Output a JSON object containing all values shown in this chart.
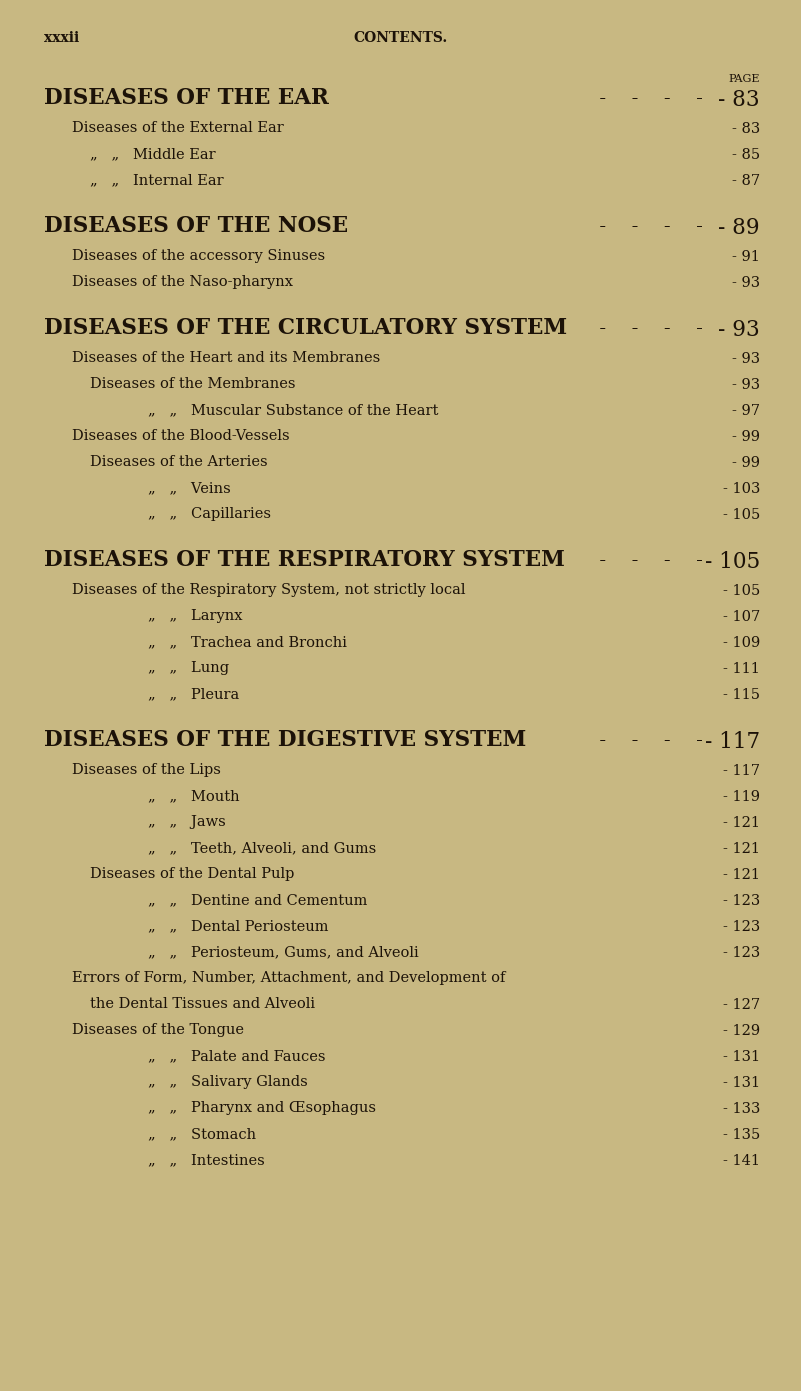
{
  "bg_color": "#c8b882",
  "text_color": "#1c1208",
  "header_left": "xxxii",
  "header_center": "CONTENTS.",
  "page_label": "PAGE",
  "lines": [
    {
      "text": "DISEASES OF THE EAR",
      "page": "83",
      "indent": 0,
      "type": "major",
      "dots": " -    -    -    -   "
    },
    {
      "text": "Diseases of the External Ear",
      "page": "83",
      "indent": 1,
      "type": "minor1",
      "dots": " -         -         -   "
    },
    {
      "text": "„   „   Middle Ear",
      "page": "85",
      "indent": 2,
      "type": "minor2",
      "dots": " -    -    -    -   "
    },
    {
      "text": "„   „   Internal Ear",
      "page": "87",
      "indent": 2,
      "type": "minor2",
      "dots": " -    -    -    -   "
    },
    {
      "text": "DISEASES OF THE NOSE",
      "page": "89",
      "indent": 0,
      "type": "major",
      "dots": " -    -    -    -   ",
      "space_before": true
    },
    {
      "text": "Diseases of the accessory Sinuses",
      "page": "91",
      "indent": 1,
      "type": "minor1",
      "dots": " -         -         -   "
    },
    {
      "text": "Diseases of the Naso-pharynx",
      "page": "93",
      "indent": 1,
      "type": "minor1",
      "dots": " -    -    -    -   "
    },
    {
      "text": "DISEASES OF THE CIRCULATORY SYSTEM",
      "page": "93",
      "indent": 0,
      "type": "major",
      "dots": " -   ",
      "space_before": true
    },
    {
      "text": "Diseases of the Heart and its Membranes",
      "page": "93",
      "indent": 1,
      "type": "minor1",
      "dots": " -   "
    },
    {
      "text": "Diseases of the Membranes",
      "page": "93",
      "indent": 2,
      "type": "minor1",
      "dots": " -    -    -    -    -   "
    },
    {
      "text": "„   „   Muscular Substance of the Heart",
      "page": "97",
      "indent": 3,
      "type": "minor2",
      "dots": " -   "
    },
    {
      "text": "Diseases of the Blood-Vessels",
      "page": "99",
      "indent": 1,
      "type": "minor1",
      "dots": " -    -    -    -   "
    },
    {
      "text": "Diseases of the Arteries",
      "page": "99",
      "indent": 2,
      "type": "minor1",
      "dots": " -    -    -    -   "
    },
    {
      "text": "„   „   Veins",
      "page": "103",
      "indent": 3,
      "type": "minor2",
      "dots": " -    -    -    -   "
    },
    {
      "text": "„   „   Capillaries",
      "page": "105",
      "indent": 3,
      "type": "minor2",
      "dots": " -    -    -    -   "
    },
    {
      "text": "DISEASES OF THE RESPIRATORY SYSTEM",
      "page": "105",
      "indent": 0,
      "type": "major",
      "dots": " -   ",
      "space_before": true
    },
    {
      "text": "Diseases of the Respiratory System, not strictly local",
      "page": "105",
      "indent": 1,
      "type": "minor1",
      "dots": " -   "
    },
    {
      "text": "„   „   Larynx",
      "page": "107",
      "indent": 3,
      "type": "minor2",
      "dots": " -    -    -    -    -    -   "
    },
    {
      "text": "„   „   Trachea and Bronchi",
      "page": "109",
      "indent": 3,
      "type": "minor2",
      "dots": " -    -    -   "
    },
    {
      "text": "„   „   Lung",
      "page": "111",
      "indent": 3,
      "type": "minor2",
      "dots": " -    -    -    -    -    -   "
    },
    {
      "text": "„   „   Pleura",
      "page": "115",
      "indent": 3,
      "type": "minor2",
      "dots": " -    -    -    -   "
    },
    {
      "text": "DISEASES OF THE DIGESTIVE SYSTEM",
      "page": "117",
      "indent": 0,
      "type": "major",
      "dots": " -   ",
      "space_before": true
    },
    {
      "text": "Diseases of the Lips",
      "page": "117",
      "indent": 1,
      "type": "minor1",
      "dots": " -    -    -    -   "
    },
    {
      "text": "„   „   Mouth",
      "page": "119",
      "indent": 3,
      "type": "minor2",
      "dots": " -    -    -    -    -   "
    },
    {
      "text": "„   „   Jaws",
      "page": "121",
      "indent": 3,
      "type": "minor2",
      "dots": " -    -    -    -   "
    },
    {
      "text": "„   „   Teeth, Alveoli, and Gums",
      "page": "121",
      "indent": 3,
      "type": "minor2",
      "dots": " -    -   "
    },
    {
      "text": "Diseases of the Dental Pulp",
      "page": "121",
      "indent": 2,
      "type": "minor1",
      "dots": " -    -    -    -   "
    },
    {
      "text": "„   „   Dentine and Cementum",
      "page": "123",
      "indent": 3,
      "type": "minor2",
      "dots": " -    -    -   "
    },
    {
      "text": "„   „   Dental Periosteum",
      "page": "123",
      "indent": 3,
      "type": "minor2",
      "dots": " -    -    -   "
    },
    {
      "text": "„   „   Periosteum, Gums, and Alveoli",
      "page": "123",
      "indent": 3,
      "type": "minor2",
      "dots": " -    -   "
    },
    {
      "text": "Errors of Form, Number, Attachment, and Development of",
      "page": null,
      "indent": 1,
      "type": "minor1",
      "dots": ""
    },
    {
      "text": "the Dental Tissues and Alveoli",
      "page": "127",
      "indent": 2,
      "type": "minor1cont",
      "dots": " -    -    -   "
    },
    {
      "text": "Diseases of the Tongue",
      "page": "129",
      "indent": 1,
      "type": "minor1",
      "dots": " -    -    -    -    -    -   "
    },
    {
      "text": "„   „   Palate and Fauces",
      "page": "131",
      "indent": 3,
      "type": "minor2",
      "dots": " -    -   "
    },
    {
      "text": "„   „   Salivary Glands",
      "page": "131",
      "indent": 3,
      "type": "minor2",
      "dots": " -   "
    },
    {
      "text": "„   „   Pharynx and Œsophagus",
      "page": "133",
      "indent": 3,
      "type": "minor2",
      "dots": " -    -    -   "
    },
    {
      "text": "„   „   Stomach",
      "page": "135",
      "indent": 3,
      "type": "minor2",
      "dots": " -    -    -    -   "
    },
    {
      "text": "„   „   Intestines",
      "page": "141",
      "indent": 3,
      "type": "minor2",
      "dots": " -    -    -   "
    }
  ]
}
